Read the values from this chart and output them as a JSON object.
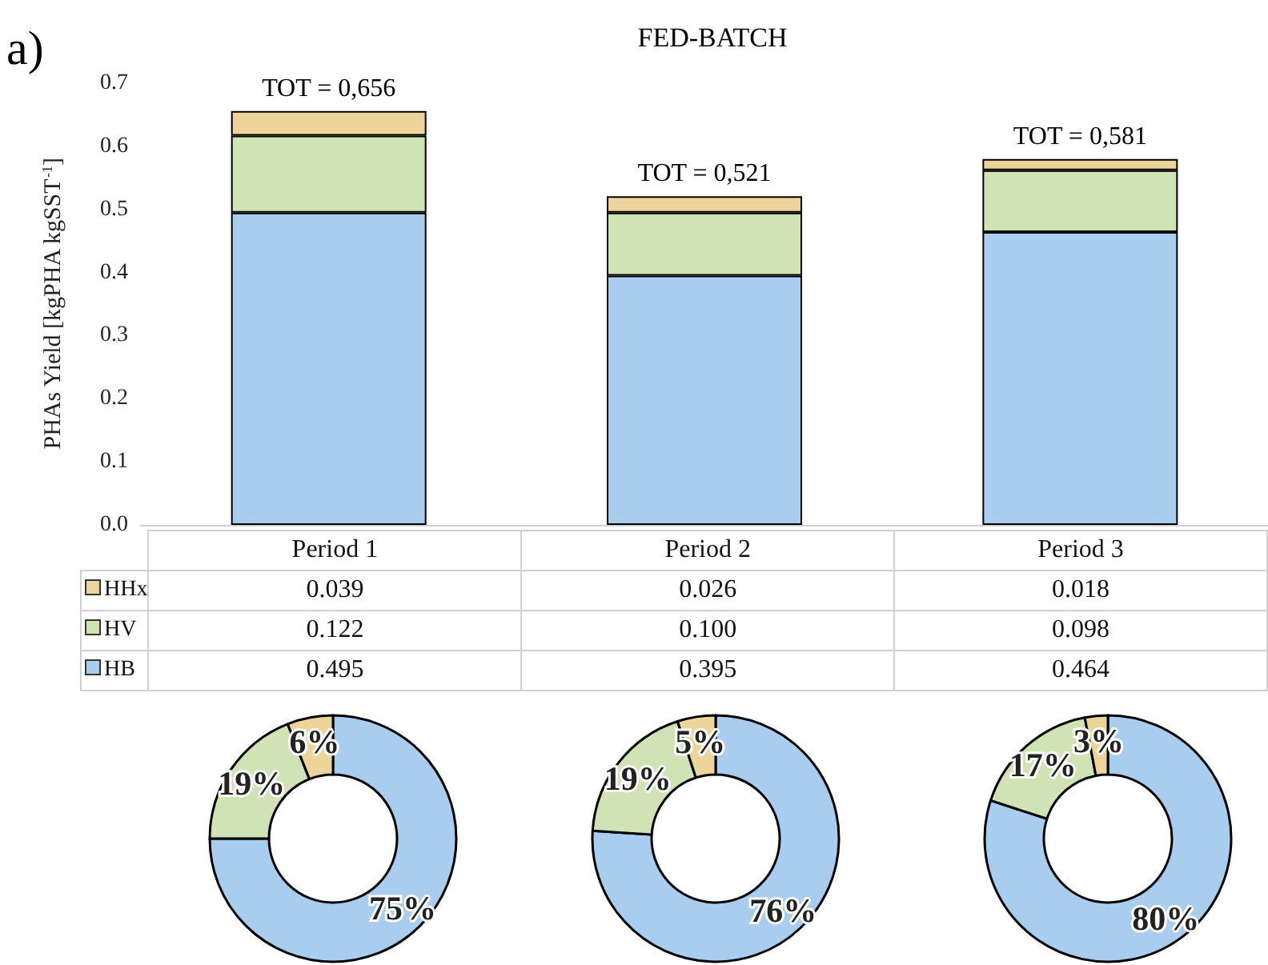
{
  "chart_data": [
    {
      "type": "bar",
      "title": "FED-BATCH",
      "annotations": [
        "a)"
      ],
      "ylabel": "PHAs Yield [kgPHA kgSST$^{-1}$]",
      "stacked": true,
      "grid": false,
      "legend": "bottom",
      "categories": [
        "Period 1",
        "Period 2",
        "Period 3"
      ],
      "ylim": [
        0,
        0.7
      ],
      "yticks": [
        {
          "value": 0,
          "label": "0.0"
        },
        {
          "value": 0.1,
          "label": "0.1"
        },
        {
          "value": 0.2,
          "label": "0.2"
        },
        {
          "value": 0.3,
          "label": "0.3"
        },
        {
          "value": 0.4,
          "label": "0.4"
        },
        {
          "value": 0.5,
          "label": "0.5"
        },
        {
          "value": 0.6,
          "label": "0.6"
        },
        {
          "value": 0.7,
          "label": "0.7"
        }
      ],
      "series": [
        {
          "name": "HB",
          "color": "#a9cdef",
          "values": [
            0.495,
            0.395,
            0.464
          ],
          "value_labels": [
            "0.495",
            "0.395",
            "0.464"
          ]
        },
        {
          "name": "HV",
          "color": "#cfe3b4",
          "values": [
            0.122,
            0.1,
            0.098
          ],
          "value_labels": [
            "0.122",
            "0.100",
            "0.098"
          ]
        },
        {
          "name": "HHx",
          "color": "#ecd49a",
          "values": [
            0.039,
            0.026,
            0.018
          ],
          "value_labels": [
            "0.039",
            "0.026",
            "0.018"
          ]
        }
      ],
      "totals": [
        "TOT = 0,656",
        "TOT = 0,521",
        "TOT = 0,581"
      ]
    },
    {
      "type": "donut",
      "categories": [
        null,
        null,
        null
      ],
      "values": [
        75,
        19,
        6
      ],
      "colors": [
        "#a9cdef",
        "#cfe3b4",
        "#ecd49a"
      ],
      "value_labels": [
        "75%",
        "19%",
        "6%"
      ]
    },
    {
      "type": "donut",
      "categories": [
        null,
        null,
        null
      ],
      "values": [
        76,
        19,
        5
      ],
      "colors": [
        "#a9cdef",
        "#cfe3b4",
        "#ecd49a"
      ],
      "value_labels": [
        "76%",
        "19%",
        "5%"
      ]
    },
    {
      "type": "donut",
      "categories": [
        null,
        null,
        null
      ],
      "values": [
        80,
        17,
        3
      ],
      "colors": [
        "#a9cdef",
        "#cfe3b4",
        "#ecd49a"
      ],
      "value_labels": [
        "80%",
        "17%",
        "3%"
      ]
    }
  ]
}
